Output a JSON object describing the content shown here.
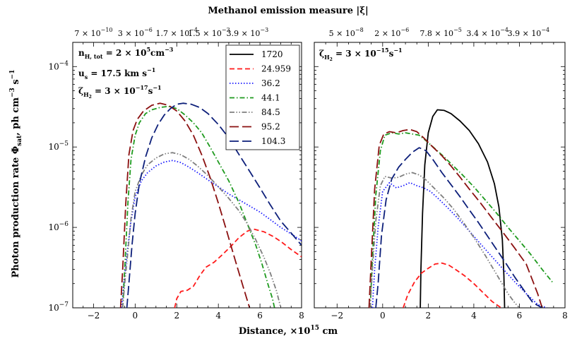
{
  "figure": {
    "top_title": "Methanol emission measure |ξ|",
    "xlabel": "Distance, ×10",
    "xlabel_exp": "15",
    "xlabel_unit": " cm",
    "ylabel_main": "Photon production rate Φ",
    "ylabel_sub": "sat",
    "ylabel_unit": ", ph cm",
    "ylabel_exp1": "−3",
    "ylabel_s": " s",
    "ylabel_exp2": "−1"
  },
  "panels": [
    {
      "id": "left",
      "annotations": {
        "density": "n",
        "density_sub": "H, tot",
        "density_val": " = 2 × 10",
        "density_exp": "5",
        "density_unit": "cm",
        "density_unit_exp": "−3",
        "velocity": "u",
        "velocity_sub": "s",
        "velocity_val": " = 17.5 km s",
        "velocity_exp": "−1",
        "zeta": "ζ",
        "zeta_sub": "H",
        "zeta_sub2": "2",
        "zeta_val": " = 3 × 10",
        "zeta_exp": "−17",
        "zeta_unit": "s",
        "zeta_unit_exp": "−1"
      },
      "top_ticks": [
        {
          "x": -2.0,
          "mant": "7 × 10",
          "exp": "−10"
        },
        {
          "x": 0.0,
          "mant": "3 × 10",
          "exp": "−6"
        },
        {
          "x": 2.0,
          "mant": "1.7 × 10",
          "exp": "−4"
        },
        {
          "x": 3.55,
          "mant": "1.5 × 10",
          "exp": "−3"
        },
        {
          "x": 5.4,
          "mant": "3.9 × 10",
          "exp": "−3"
        }
      ]
    },
    {
      "id": "right",
      "annotations": {
        "zeta": "ζ",
        "zeta_sub": "H",
        "zeta_sub2": "2",
        "zeta_val": " = 3 × 10",
        "zeta_exp": "−15",
        "zeta_unit": "s",
        "zeta_unit_exp": "−1"
      },
      "top_ticks": [
        {
          "x": -1.6,
          "mant": "5 × 10",
          "exp": "−8"
        },
        {
          "x": 0.4,
          "mant": "2 × 10",
          "exp": "−6"
        },
        {
          "x": 2.55,
          "mant": "7.8 × 10",
          "exp": "−5"
        },
        {
          "x": 4.6,
          "mant": "3.4 × 10",
          "exp": "−4"
        },
        {
          "x": 6.4,
          "mant": "3.9 × 10",
          "exp": "−4"
        }
      ]
    }
  ],
  "legend": {
    "placement": "top-right of left panel",
    "entries": [
      {
        "label": "1720",
        "color": "#000000",
        "dash": "solid"
      },
      {
        "label": "24.959",
        "color": "#ff1a1a",
        "dash": "dash"
      },
      {
        "label": "36.2",
        "color": "#1a1aff",
        "dash": "dot"
      },
      {
        "label": "44.1",
        "color": "#1e9a1e",
        "dash": "dashdot"
      },
      {
        "label": "84.5",
        "color": "#7f7f7f",
        "dash": "dashdotdot"
      },
      {
        "label": "95.2",
        "color": "#8b1010",
        "dash": "longdash"
      },
      {
        "label": "104.3",
        "color": "#0d1f7a",
        "dash": "longdash"
      }
    ]
  },
  "chart_data": [
    {
      "type": "line",
      "panel": "left",
      "xlabel": "Distance, ×10^15 cm",
      "ylabel": "Photon production rate Φsat, ph cm^-3 s^-1",
      "xlim": [
        -3,
        8
      ],
      "ylim": [
        1e-07,
        0.0002
      ],
      "yscale": "log",
      "xticks": [
        -2,
        0,
        2,
        4,
        6,
        8
      ],
      "yticks": [
        {
          "v": 1e-07,
          "mant": "10",
          "exp": "−7"
        },
        {
          "v": 1e-06,
          "mant": "10",
          "exp": "−6"
        },
        {
          "v": 1e-05,
          "mant": "10",
          "exp": "−5"
        },
        {
          "v": 0.0001,
          "mant": "10",
          "exp": "−4"
        }
      ],
      "series": [
        {
          "name": "24.959",
          "x": [
            1.9,
            2.0,
            2.2,
            2.5,
            2.8,
            3.1,
            3.4,
            3.8,
            4.2,
            4.6,
            5.0,
            5.4,
            5.7,
            6.2,
            6.6,
            7.0,
            7.5,
            8.0
          ],
          "y": [
            1e-07,
            1.3e-07,
            1.6e-07,
            1.65e-07,
            1.85e-07,
            2.5e-07,
            3.2e-07,
            3.7e-07,
            4.6e-07,
            5.8e-07,
            7.5e-07,
            9e-07,
            9.5e-07,
            8.8e-07,
            7.8e-07,
            6.7e-07,
            5.3e-07,
            4.3e-07
          ]
        },
        {
          "name": "36.2",
          "x": [
            -0.65,
            -0.55,
            -0.4,
            -0.2,
            0.0,
            0.3,
            0.6,
            1.0,
            1.4,
            1.8,
            2.2,
            2.6,
            3.0,
            3.5,
            4.0,
            4.5,
            5.0,
            5.5,
            6.0,
            6.5,
            7.0,
            7.5,
            8.0
          ],
          "y": [
            1e-07,
            2e-07,
            4.5e-07,
            1.2e-06,
            2.4e-06,
            3.8e-06,
            4.8e-06,
            5.8e-06,
            6.5e-06,
            6.8e-06,
            6.4e-06,
            5.6e-06,
            4.8e-06,
            3.9e-06,
            3.2e-06,
            2.6e-06,
            2.2e-06,
            1.85e-06,
            1.55e-06,
            1.25e-06,
            1e-06,
            8.3e-07,
            6.8e-07
          ]
        },
        {
          "name": "44.1",
          "x": [
            -0.6,
            -0.5,
            -0.35,
            -0.2,
            0.0,
            0.2,
            0.5,
            0.8,
            1.2,
            1.6,
            2.0,
            2.4,
            2.8,
            3.2,
            3.6,
            4.0,
            4.5,
            5.0,
            5.4,
            5.8,
            6.1,
            6.4,
            6.6,
            6.7
          ],
          "y": [
            1e-07,
            3e-07,
            2e-06,
            7e-06,
            1.4e-05,
            2e-05,
            2.6e-05,
            2.9e-05,
            3.1e-05,
            3.2e-05,
            3e-05,
            2.5e-05,
            2e-05,
            1.5e-05,
            1e-05,
            6.5e-06,
            3.8e-06,
            2e-06,
            1.1e-06,
            6e-07,
            3.5e-07,
            1.9e-07,
            1.3e-07,
            1e-07
          ]
        },
        {
          "name": "84.5",
          "x": [
            -0.6,
            -0.5,
            -0.35,
            -0.2,
            0.0,
            0.3,
            0.6,
            1.0,
            1.4,
            1.8,
            2.2,
            2.6,
            3.0,
            3.5,
            4.0,
            4.5,
            5.0,
            5.4,
            5.8,
            6.2,
            6.5,
            6.8,
            7.0
          ],
          "y": [
            1e-07,
            2e-07,
            5e-07,
            1.3e-06,
            2.8e-06,
            4.5e-06,
            6e-06,
            7.3e-06,
            8.2e-06,
            8.5e-06,
            8e-06,
            7e-06,
            5.8e-06,
            4.4e-06,
            3.2e-06,
            2.3e-06,
            1.6e-06,
            1.1e-06,
            7e-07,
            4.2e-07,
            2.7e-07,
            1.6e-07,
            1e-07
          ]
        },
        {
          "name": "95.2",
          "x": [
            -0.7,
            -0.6,
            -0.45,
            -0.3,
            -0.1,
            0.1,
            0.4,
            0.8,
            1.2,
            1.6,
            2.0,
            2.4,
            2.8,
            3.2,
            3.6,
            4.0,
            4.4,
            4.8,
            5.2,
            5.5
          ],
          "y": [
            1e-07,
            3e-07,
            2e-06,
            8e-06,
            1.6e-05,
            2.2e-05,
            2.8e-05,
            3.3e-05,
            3.5e-05,
            3.3e-05,
            2.8e-05,
            2.1e-05,
            1.4e-05,
            8e-06,
            4.2e-06,
            2e-06,
            9e-07,
            4e-07,
            1.8e-07,
            1e-07
          ]
        },
        {
          "name": "104.3",
          "x": [
            -0.4,
            -0.3,
            -0.15,
            0.0,
            0.2,
            0.5,
            0.8,
            1.1,
            1.4,
            1.7,
            2.0,
            2.3,
            2.7,
            3.1,
            3.5,
            4.0,
            4.5,
            5.0,
            5.5,
            6.0,
            6.5,
            7.0,
            7.5,
            8.0
          ],
          "y": [
            1e-07,
            2e-07,
            6e-07,
            1.5e-06,
            3.5e-06,
            7.5e-06,
            1.3e-05,
            1.9e-05,
            2.5e-05,
            3e-05,
            3.4e-05,
            3.5e-05,
            3.4e-05,
            3.1e-05,
            2.6e-05,
            1.9e-05,
            1.3e-05,
            8e-06,
            5e-06,
            3.1e-06,
            1.9e-06,
            1.2e-06,
            8.5e-07,
            6e-07
          ]
        }
      ]
    },
    {
      "type": "line",
      "panel": "right",
      "xlabel": "Distance, ×10^15 cm",
      "xlim": [
        -3,
        8
      ],
      "ylim": [
        1e-07,
        0.0002
      ],
      "yscale": "log",
      "xticks": [
        -2,
        0,
        2,
        4,
        6,
        8
      ],
      "series": [
        {
          "name": "1720",
          "x": [
            1.65,
            1.68,
            1.75,
            1.85,
            2.0,
            2.2,
            2.4,
            2.7,
            3.0,
            3.4,
            3.8,
            4.2,
            4.6,
            4.9,
            5.1,
            5.25,
            5.32,
            5.35
          ],
          "y": [
            1e-07,
            3e-07,
            1.5e-06,
            6e-06,
            1.5e-05,
            2.4e-05,
            2.9e-05,
            2.85e-05,
            2.6e-05,
            2.1e-05,
            1.6e-05,
            1.1e-05,
            6.5e-06,
            3.5e-06,
            1.8e-06,
            7e-07,
            2.5e-07,
            1e-07
          ]
        },
        {
          "name": "24.959",
          "x": [
            0.9,
            1.1,
            1.4,
            1.7,
            2.0,
            2.3,
            2.6,
            2.9,
            3.2,
            3.6,
            4.0,
            4.4,
            4.8,
            5.2
          ],
          "y": [
            1e-07,
            1.45e-07,
            2.1e-07,
            2.7e-07,
            3.1e-07,
            3.5e-07,
            3.6e-07,
            3.4e-07,
            3e-07,
            2.5e-07,
            2e-07,
            1.55e-07,
            1.2e-07,
            1e-07
          ]
        },
        {
          "name": "36.2",
          "x": [
            -0.45,
            -0.35,
            -0.2,
            0.0,
            0.3,
            0.6,
            0.9,
            1.2,
            1.5,
            1.8,
            2.1,
            2.5,
            2.9,
            3.3,
            3.8,
            4.3,
            4.8,
            5.3,
            5.8,
            6.3,
            6.8,
            7.2
          ],
          "y": [
            1e-07,
            3e-07,
            1e-06,
            2.8e-06,
            3.6e-06,
            3.1e-06,
            3.3e-06,
            3.6e-06,
            3.3e-06,
            3.1e-06,
            2.8e-06,
            2.2e-06,
            1.7e-06,
            1.3e-06,
            9e-07,
            6.2e-07,
            4.3e-07,
            3e-07,
            2.1e-07,
            1.5e-07,
            1.1e-07,
            1e-07
          ]
        },
        {
          "name": "44.1",
          "x": [
            -0.55,
            -0.45,
            -0.3,
            -0.1,
            0.1,
            0.4,
            0.7,
            1.0,
            1.3,
            1.6,
            1.9,
            2.3,
            2.7,
            3.1,
            3.5,
            4.0,
            4.5,
            5.0,
            5.5,
            6.0,
            6.5,
            7.0,
            7.5
          ],
          "y": [
            1e-07,
            4e-07,
            2.5e-06,
            9e-06,
            1.4e-05,
            1.5e-05,
            1.45e-05,
            1.5e-05,
            1.45e-05,
            1.4e-05,
            1.2e-05,
            9.5e-06,
            7.5e-06,
            5.8e-06,
            4.5e-06,
            3.2e-06,
            2.2e-06,
            1.5e-06,
            1e-06,
            6.8e-07,
            4.6e-07,
            3e-07,
            2e-07
          ]
        },
        {
          "name": "84.5",
          "x": [
            -0.55,
            -0.45,
            -0.3,
            -0.1,
            0.1,
            0.4,
            0.7,
            1.0,
            1.3,
            1.6,
            1.9,
            2.3,
            2.7,
            3.1,
            3.5,
            4.0,
            4.5,
            5.0,
            5.5,
            5.8,
            6.0
          ],
          "y": [
            1e-07,
            3e-07,
            1.2e-06,
            3.3e-06,
            4.3e-06,
            4.1e-06,
            4.2e-06,
            4.6e-06,
            4.8e-06,
            4.5e-06,
            3.9e-06,
            3e-06,
            2.3e-06,
            1.7e-06,
            1.2e-06,
            7.5e-07,
            4.5e-07,
            2.6e-07,
            1.5e-07,
            1.15e-07,
            1e-07
          ]
        },
        {
          "name": "95.2",
          "x": [
            -0.6,
            -0.5,
            -0.35,
            -0.15,
            0.05,
            0.3,
            0.6,
            0.9,
            1.2,
            1.5,
            1.8,
            2.2,
            2.6,
            3.0,
            3.4,
            3.8,
            4.3,
            4.8,
            5.3,
            5.8,
            6.3,
            6.8,
            7.0
          ],
          "y": [
            1e-07,
            4e-07,
            3e-06,
            1.05e-05,
            1.45e-05,
            1.55e-05,
            1.5e-05,
            1.6e-05,
            1.65e-05,
            1.55e-05,
            1.3e-05,
            1e-05,
            7.8e-06,
            5.8e-06,
            4.2e-06,
            3e-06,
            2e-06,
            1.3e-06,
            8.5e-07,
            5.5e-07,
            3.5e-07,
            1.5e-07,
            1e-07
          ]
        },
        {
          "name": "104.3",
          "x": [
            -0.3,
            -0.2,
            -0.05,
            0.15,
            0.4,
            0.7,
            1.0,
            1.3,
            1.6,
            1.9,
            2.2,
            2.6,
            3.0,
            3.4,
            3.8,
            4.2,
            4.6,
            5.0,
            5.4,
            5.8,
            6.2,
            6.6,
            7.0
          ],
          "y": [
            1e-07,
            2e-07,
            8e-07,
            2.2e-06,
            4e-06,
            5.6e-06,
            7e-06,
            8.6e-06,
            9.8e-06,
            9e-06,
            7e-06,
            4.8e-06,
            3.4e-06,
            2.4e-06,
            1.65e-06,
            1.15e-06,
            7.8e-07,
            5.3e-07,
            3.6e-07,
            2.4e-07,
            1.65e-07,
            1.15e-07,
            1e-07
          ]
        }
      ]
    }
  ]
}
